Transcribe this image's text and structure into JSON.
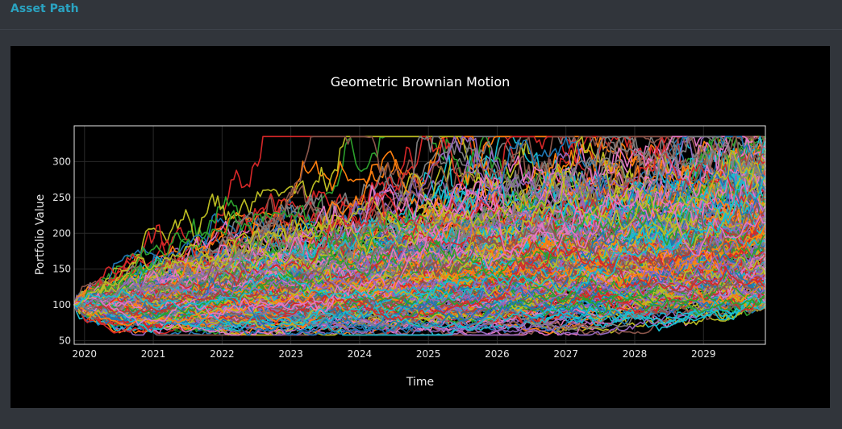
{
  "header": {
    "title": "Asset Path"
  },
  "chart_data": {
    "type": "line",
    "title": "Geometric Brownian Motion",
    "xlabel": "Time",
    "ylabel": "Portfolio Value",
    "xlim": [
      2019.85,
      2029.9
    ],
    "ylim": [
      45,
      350
    ],
    "x_ticks": [
      "2020",
      "2021",
      "2022",
      "2023",
      "2024",
      "2025",
      "2026",
      "2027",
      "2028",
      "2029"
    ],
    "x_tick_values": [
      2020,
      2021,
      2022,
      2023,
      2024,
      2025,
      2026,
      2027,
      2028,
      2029
    ],
    "y_ticks": [
      "50",
      "100",
      "150",
      "200",
      "250",
      "300"
    ],
    "y_tick_values": [
      50,
      100,
      150,
      200,
      250,
      300
    ],
    "grid": true,
    "legend": "none",
    "simulation": {
      "num_paths": 300,
      "start_value": 100,
      "start_year": 2019.85,
      "end_year": 2029.9,
      "final_value_range": [
        95,
        335
      ]
    },
    "colors": [
      "#1f77b4",
      "#ff7f0e",
      "#2ca02c",
      "#d62728",
      "#9467bd",
      "#8c564b",
      "#e377c2",
      "#7f7f7f",
      "#bcbd22",
      "#17becf"
    ]
  }
}
